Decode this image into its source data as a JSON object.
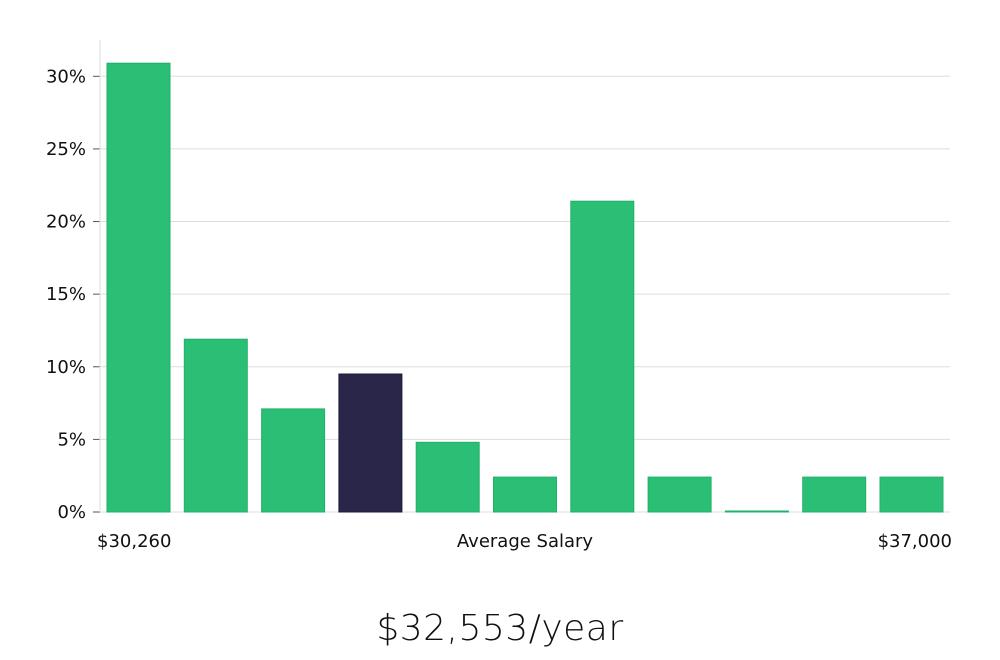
{
  "chart_data": {
    "type": "bar",
    "title": "",
    "xlabel": "Average Salary",
    "ylabel": "",
    "ylim": [
      0,
      32.5
    ],
    "yticks": [
      0,
      5,
      10,
      15,
      20,
      25,
      30
    ],
    "ytick_labels": [
      "0%",
      "5%",
      "10%",
      "15%",
      "20%",
      "25%",
      "30%"
    ],
    "x_range_labels": {
      "min": "$30,260",
      "max": "$37,000"
    },
    "values": [
      30.9,
      11.9,
      7.1,
      9.5,
      4.8,
      2.4,
      21.4,
      2.4,
      0.05,
      2.4,
      2.4
    ],
    "highlight_index": 3,
    "grid": true,
    "colors": {
      "bar": "#2bbf76",
      "highlight": "#29264a",
      "grid": "#dddddd",
      "axis": "#dddddd"
    }
  },
  "headline": "$32,553/year"
}
